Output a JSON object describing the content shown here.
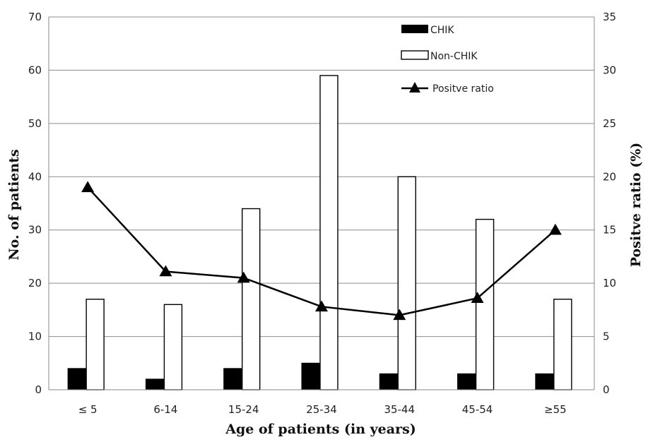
{
  "chart_data": {
    "type": "bar",
    "categories": [
      "≤ 5",
      "6-14",
      "15-24",
      "25-34",
      "35-44",
      "45-54",
      "≥55"
    ],
    "series": [
      {
        "name": "CHIK",
        "type": "bar",
        "axis": "left",
        "color": "#000000",
        "values": [
          4,
          2,
          4,
          5,
          3,
          3,
          3
        ]
      },
      {
        "name": "Non-CHIK",
        "type": "bar",
        "axis": "left",
        "color": "#ffffff",
        "values": [
          17,
          16,
          34,
          59,
          40,
          32,
          17
        ]
      },
      {
        "name": "Positve ratio",
        "type": "line",
        "axis": "right",
        "marker": "triangle",
        "color": "#000000",
        "values": [
          19.0,
          11.1,
          10.5,
          7.8,
          7.0,
          8.6,
          15.0
        ]
      }
    ],
    "xlabel": "Age of patients (in years)",
    "ylabel": "No. of patients",
    "y2label": "Positve ratio (%)",
    "ylim": [
      0,
      70
    ],
    "y2lim": [
      0,
      35
    ],
    "yticks": [
      0,
      10,
      20,
      30,
      40,
      50,
      60,
      70
    ],
    "y2ticks": [
      0,
      5,
      10,
      15,
      20,
      25,
      30,
      35
    ],
    "grid": true,
    "legend": "top-right"
  }
}
